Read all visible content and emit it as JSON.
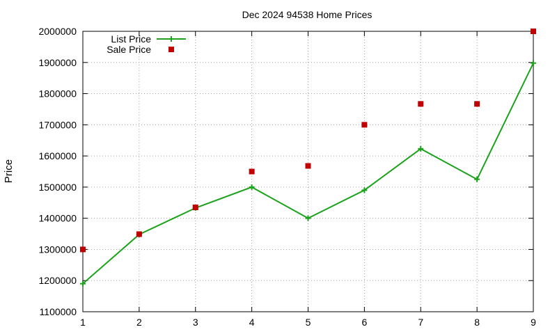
{
  "chart_data": {
    "type": "line",
    "title": "Dec 2024 94538 Home Prices",
    "xlabel": "",
    "ylabel": "Price",
    "x": [
      1,
      2,
      3,
      4,
      5,
      6,
      7,
      8,
      9
    ],
    "xlim": [
      1,
      9
    ],
    "ylim": [
      1100000,
      2000000
    ],
    "xticks": [
      "1",
      "2",
      "3",
      "4",
      "5",
      "6",
      "7",
      "8",
      "9"
    ],
    "yticks": [
      "1100000",
      "1200000",
      "1300000",
      "1400000",
      "1500000",
      "1600000",
      "1700000",
      "1800000",
      "1900000",
      "2000000"
    ],
    "grid": true,
    "legend_position": "top-left",
    "series": [
      {
        "name": "List Price",
        "style": "line-with-plus-markers",
        "color": "#1aa31a",
        "values": [
          1190000,
          1348000,
          1433000,
          1500000,
          1400000,
          1490000,
          1623000,
          1525000,
          1898000
        ]
      },
      {
        "name": "Sale Price",
        "style": "square-points",
        "color": "#c00000",
        "values": [
          1300000,
          1349000,
          1435000,
          1550000,
          1568000,
          1700000,
          1767000,
          1767000,
          2000000
        ]
      }
    ]
  }
}
